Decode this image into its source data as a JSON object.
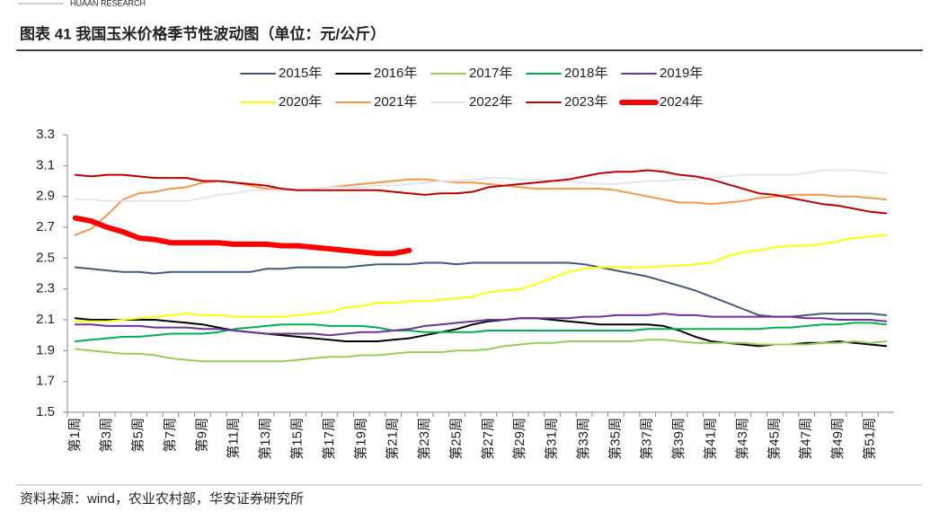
{
  "header": "HUAAN RESEARCH",
  "chart_data": {
    "type": "line",
    "title": "图表 41 我国玉米价格季节性波动图（单位：元/公斤）",
    "source": "资料来源：wind，农业农村部，华安证券研究所",
    "categories": [
      "第1周",
      null,
      "第3周",
      null,
      "第5周",
      null,
      "第7周",
      null,
      "第9周",
      null,
      "第11周",
      null,
      "第13周",
      null,
      "第15周",
      null,
      "第17周",
      null,
      "第19周",
      null,
      "第21周",
      null,
      "第23周",
      null,
      "第25周",
      null,
      "第27周",
      null,
      "第29周",
      null,
      "第31周",
      null,
      "第33周",
      null,
      "第35周",
      null,
      "第37周",
      null,
      "第39周",
      null,
      "第41周",
      null,
      "第43周",
      null,
      "第45周",
      null,
      "第47周",
      null,
      "第49周",
      null,
      "第51周",
      null
    ],
    "ylim": [
      1.5,
      3.3
    ],
    "yticks": [
      1.5,
      1.7,
      1.9,
      2.1,
      2.3,
      2.5,
      2.7,
      2.9,
      3.1,
      3.3
    ],
    "grid": false,
    "legend": "top",
    "series": [
      {
        "name": "2015年",
        "color": "#3e5a80",
        "values": [
          2.44,
          2.43,
          2.42,
          2.41,
          2.41,
          2.4,
          2.41,
          2.41,
          2.41,
          2.41,
          2.41,
          2.41,
          2.43,
          2.43,
          2.44,
          2.44,
          2.44,
          2.44,
          2.45,
          2.46,
          2.46,
          2.46,
          2.47,
          2.47,
          2.46,
          2.47,
          2.47,
          2.47,
          2.47,
          2.47,
          2.47,
          2.47,
          2.46,
          2.44,
          2.42,
          2.4,
          2.38,
          2.35,
          2.32,
          2.29,
          2.25,
          2.21,
          2.17,
          2.13,
          2.12,
          2.12,
          2.13,
          2.14,
          2.14,
          2.14,
          2.14,
          2.13
        ]
      },
      {
        "name": "2016年",
        "color": "#000000",
        "values": [
          2.11,
          2.1,
          2.1,
          2.1,
          2.1,
          2.1,
          2.09,
          2.08,
          2.07,
          2.05,
          2.03,
          2.02,
          2.01,
          2.0,
          1.99,
          1.98,
          1.97,
          1.96,
          1.96,
          1.96,
          1.97,
          1.98,
          2.0,
          2.02,
          2.04,
          2.07,
          2.09,
          2.1,
          2.11,
          2.11,
          2.1,
          2.09,
          2.08,
          2.07,
          2.07,
          2.07,
          2.07,
          2.06,
          2.03,
          1.99,
          1.96,
          1.95,
          1.94,
          1.93,
          1.94,
          1.94,
          1.95,
          1.95,
          1.96,
          1.95,
          1.94,
          1.93
        ]
      },
      {
        "name": "2017年",
        "color": "#92d050",
        "values": [
          1.91,
          1.9,
          1.89,
          1.88,
          1.88,
          1.87,
          1.85,
          1.84,
          1.83,
          1.83,
          1.83,
          1.83,
          1.83,
          1.83,
          1.84,
          1.85,
          1.86,
          1.86,
          1.87,
          1.87,
          1.88,
          1.89,
          1.89,
          1.89,
          1.9,
          1.9,
          1.91,
          1.93,
          1.94,
          1.95,
          1.95,
          1.96,
          1.96,
          1.96,
          1.96,
          1.96,
          1.97,
          1.97,
          1.96,
          1.95,
          1.95,
          1.95,
          1.95,
          1.94,
          1.94,
          1.94,
          1.94,
          1.95,
          1.95,
          1.96,
          1.95,
          1.96
        ]
      },
      {
        "name": "2018年",
        "color": "#00b050",
        "values": [
          1.96,
          1.97,
          1.98,
          1.99,
          1.99,
          2.0,
          2.01,
          2.01,
          2.01,
          2.02,
          2.04,
          2.05,
          2.06,
          2.07,
          2.07,
          2.07,
          2.06,
          2.06,
          2.06,
          2.05,
          2.03,
          2.03,
          2.02,
          2.02,
          2.02,
          2.02,
          2.03,
          2.03,
          2.03,
          2.03,
          2.03,
          2.03,
          2.03,
          2.03,
          2.03,
          2.03,
          2.04,
          2.04,
          2.04,
          2.04,
          2.04,
          2.04,
          2.04,
          2.04,
          2.05,
          2.05,
          2.06,
          2.07,
          2.07,
          2.08,
          2.08,
          2.07
        ]
      },
      {
        "name": "2019年",
        "color": "#7030a0",
        "values": [
          2.07,
          2.07,
          2.06,
          2.06,
          2.06,
          2.05,
          2.05,
          2.05,
          2.04,
          2.04,
          2.03,
          2.02,
          2.01,
          2.01,
          2.01,
          2.01,
          2.0,
          2.01,
          2.02,
          2.02,
          2.03,
          2.04,
          2.06,
          2.07,
          2.08,
          2.09,
          2.1,
          2.1,
          2.11,
          2.11,
          2.11,
          2.11,
          2.12,
          2.12,
          2.13,
          2.13,
          2.13,
          2.14,
          2.13,
          2.13,
          2.12,
          2.12,
          2.12,
          2.12,
          2.12,
          2.12,
          2.11,
          2.11,
          2.1,
          2.1,
          2.1,
          2.09
        ]
      },
      {
        "name": "2020年",
        "color": "#ffff00",
        "values": [
          2.09,
          2.09,
          2.09,
          2.1,
          2.11,
          2.12,
          2.13,
          2.14,
          2.13,
          2.13,
          2.12,
          2.12,
          2.12,
          2.12,
          2.13,
          2.14,
          2.15,
          2.18,
          2.19,
          2.21,
          2.21,
          2.22,
          2.22,
          2.23,
          2.24,
          2.25,
          2.28,
          2.29,
          2.3,
          2.33,
          2.37,
          2.41,
          2.43,
          2.44,
          2.44,
          2.44,
          2.44,
          2.45,
          2.45,
          2.46,
          2.47,
          2.51,
          2.54,
          2.55,
          2.57,
          2.58,
          2.58,
          2.59,
          2.61,
          2.63,
          2.64,
          2.65
        ]
      },
      {
        "name": "2021年",
        "color": "#f79646",
        "values": [
          2.65,
          2.69,
          2.78,
          2.88,
          2.92,
          2.93,
          2.95,
          2.96,
          2.99,
          3.0,
          2.99,
          2.97,
          2.95,
          2.95,
          2.94,
          2.95,
          2.96,
          2.97,
          2.98,
          2.99,
          3.0,
          3.01,
          3.01,
          3.0,
          2.99,
          2.99,
          2.98,
          2.97,
          2.96,
          2.95,
          2.95,
          2.95,
          2.95,
          2.95,
          2.94,
          2.92,
          2.9,
          2.88,
          2.86,
          2.86,
          2.85,
          2.86,
          2.87,
          2.89,
          2.9,
          2.91,
          2.91,
          2.91,
          2.9,
          2.9,
          2.89,
          2.88
        ]
      },
      {
        "name": "2022年",
        "color": "#e4e4ee",
        "values": [
          2.88,
          2.88,
          2.87,
          2.87,
          2.87,
          2.87,
          2.87,
          2.87,
          2.89,
          2.91,
          2.92,
          2.94,
          2.94,
          2.94,
          2.94,
          2.95,
          2.96,
          2.96,
          2.96,
          2.97,
          2.97,
          2.98,
          2.99,
          3.0,
          3.0,
          3.01,
          3.02,
          3.02,
          3.01,
          3.01,
          3.0,
          3.0,
          2.99,
          2.98,
          2.98,
          2.99,
          3.0,
          3.0,
          3.01,
          3.01,
          3.02,
          3.03,
          3.04,
          3.04,
          3.04,
          3.04,
          3.05,
          3.07,
          3.07,
          3.07,
          3.06,
          3.05
        ]
      },
      {
        "name": "2023年",
        "color": "#c00000",
        "values": [
          3.04,
          3.03,
          3.04,
          3.04,
          3.03,
          3.02,
          3.02,
          3.02,
          3.0,
          3.0,
          2.99,
          2.98,
          2.97,
          2.95,
          2.94,
          2.94,
          2.94,
          2.94,
          2.94,
          2.94,
          2.93,
          2.92,
          2.91,
          2.92,
          2.92,
          2.93,
          2.96,
          2.97,
          2.98,
          2.99,
          3.0,
          3.01,
          3.03,
          3.05,
          3.06,
          3.06,
          3.07,
          3.06,
          3.04,
          3.03,
          3.01,
          2.98,
          2.95,
          2.92,
          2.91,
          2.89,
          2.87,
          2.85,
          2.84,
          2.82,
          2.8,
          2.79
        ]
      },
      {
        "name": "2024年",
        "color": "#ff0000",
        "linewidth": 6,
        "values": [
          2.76,
          2.74,
          2.7,
          2.67,
          2.63,
          2.62,
          2.6,
          2.6,
          2.6,
          2.6,
          2.59,
          2.59,
          2.59,
          2.58,
          2.58,
          2.57,
          2.56,
          2.55,
          2.54,
          2.53,
          2.53,
          2.55,
          null,
          null,
          null,
          null,
          null,
          null,
          null,
          null,
          null,
          null,
          null,
          null,
          null,
          null,
          null,
          null,
          null,
          null,
          null,
          null,
          null,
          null,
          null,
          null,
          null,
          null,
          null,
          null,
          null,
          null
        ]
      }
    ]
  }
}
